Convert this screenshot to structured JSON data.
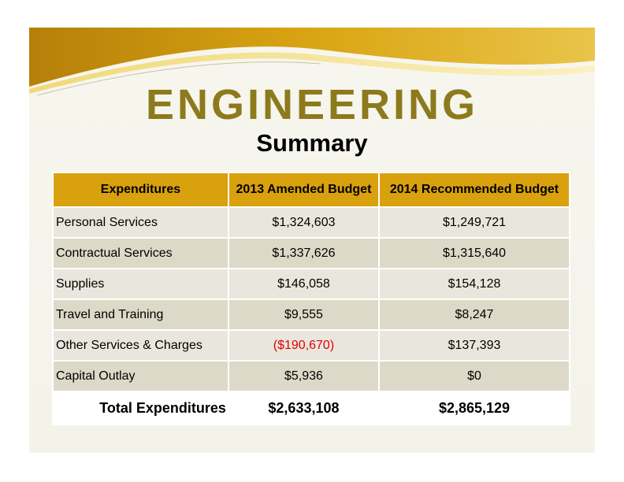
{
  "header": {
    "title": "ENGINEERING",
    "subtitle": "Summary"
  },
  "colors": {
    "title": "#8d7a1c",
    "header_fill": "#d9a10d",
    "negative": "#e00000",
    "row_light": "#e9e7dd",
    "row_dark": "#ddd9c8"
  },
  "table": {
    "columns": [
      "Expenditures",
      "2013 Amended Budget",
      "2014 Recommended Budget"
    ],
    "rows": [
      {
        "label": "Personal Services",
        "v2013": "$1,324,603",
        "v2014": "$1,249,721"
      },
      {
        "label": "Contractual Services",
        "v2013": "$1,337,626",
        "v2014": "$1,315,640"
      },
      {
        "label": "Supplies",
        "v2013": "$146,058",
        "v2014": "$154,128"
      },
      {
        "label": "Travel and Training",
        "v2013": "$9,555",
        "v2014": "$8,247"
      },
      {
        "label": "Other Services & Charges",
        "v2013": "($190,670)",
        "v2014": "$137,393"
      },
      {
        "label": "Capital Outlay",
        "v2013": "$5,936",
        "v2014": "$0"
      }
    ],
    "total": {
      "label": "Total Expenditures",
      "v2013": "$2,633,108",
      "v2014": "$2,865,129"
    }
  }
}
